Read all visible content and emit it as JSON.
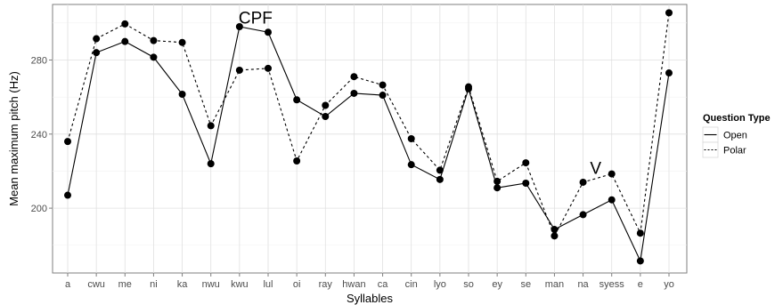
{
  "chart_data": {
    "type": "line",
    "xlabel": "Syllables",
    "ylabel": "Mean maximum pitch (Hz)",
    "categories": [
      "a",
      "cwu",
      "me",
      "ni",
      "ka",
      "nwu",
      "kwu",
      "lul",
      "oi",
      "ray",
      "hwan",
      "ca",
      "cin",
      "lyo",
      "so",
      "ey",
      "se",
      "man",
      "na",
      "syess",
      "e",
      "yo"
    ],
    "ylim": [
      165,
      310
    ],
    "yticks": [
      200,
      240,
      280
    ],
    "grid": true,
    "series": [
      {
        "name": "Open",
        "line": "solid",
        "values": [
          207,
          284,
          290,
          281.5,
          261.5,
          224,
          298,
          295,
          258.5,
          249.5,
          262,
          261,
          223.5,
          215.5,
          264.5,
          211,
          213.5,
          188.5,
          196.5,
          204.5,
          171.5,
          273
        ]
      },
      {
        "name": "Polar",
        "line": "dashed",
        "values": [
          236,
          291.5,
          299.5,
          290.5,
          289.5,
          244.5,
          274.5,
          275.5,
          225.5,
          255.5,
          271,
          266.5,
          237.5,
          220.5,
          265.5,
          214.5,
          224.5,
          185,
          214,
          218.5,
          186.5,
          305.5
        ]
      }
    ],
    "legend": {
      "title": "Question Type",
      "placement": "right"
    },
    "annotations": [
      {
        "text": "CPF",
        "x": "kwu",
        "y": 303
      },
      {
        "text": "V",
        "x": "syess",
        "y": 222
      }
    ]
  }
}
